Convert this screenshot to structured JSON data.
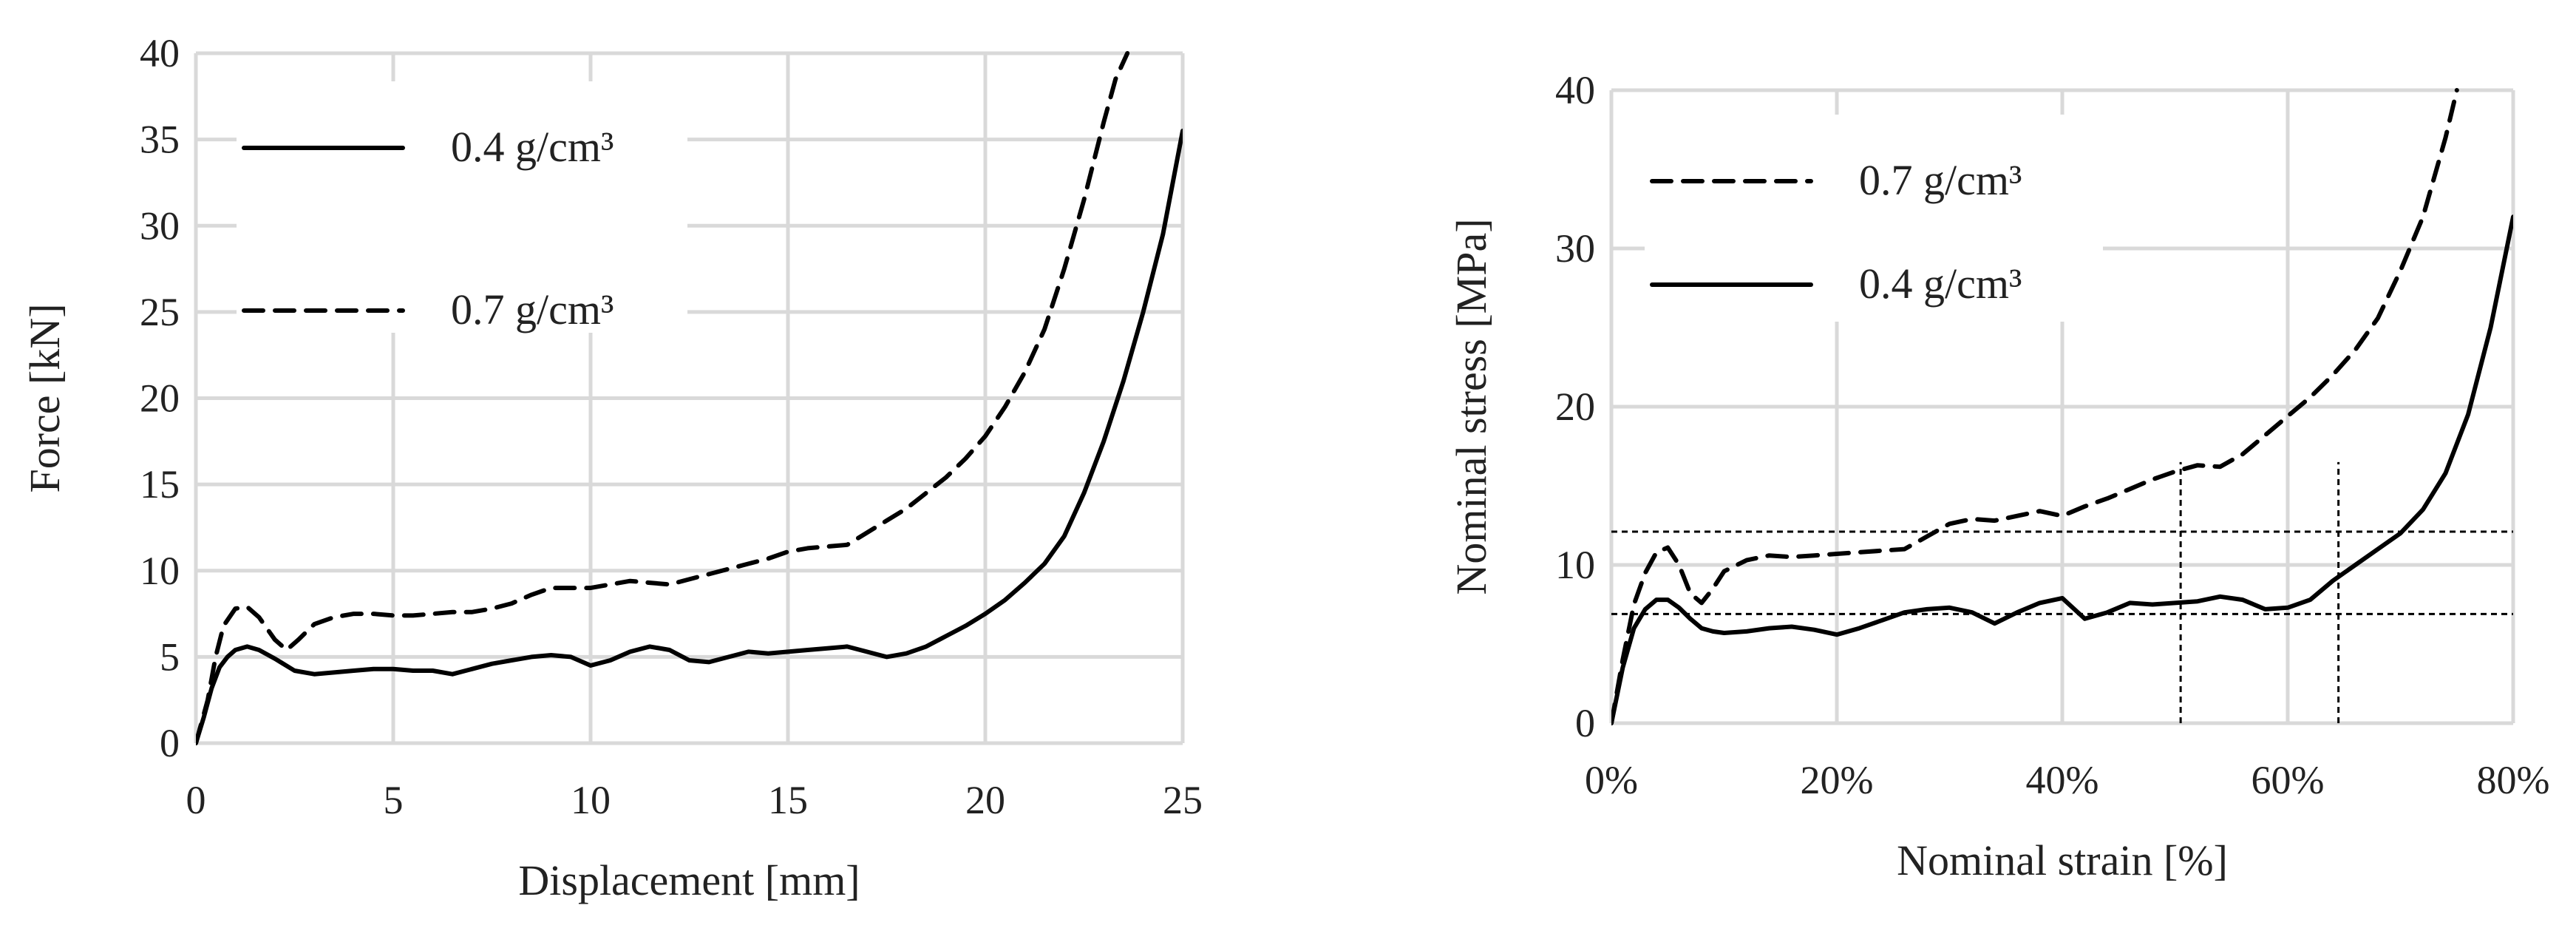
{
  "chart_data": [
    {
      "type": "line",
      "id": "left",
      "xlabel": "Displacement [mm]",
      "ylabel": "Force [kN]",
      "xlim": [
        0,
        25
      ],
      "ylim": [
        0,
        40
      ],
      "xticks": [
        0,
        5,
        10,
        15,
        20,
        25
      ],
      "yticks": [
        0,
        5,
        10,
        15,
        20,
        25,
        30,
        35,
        40
      ],
      "xtick_labels": [
        "0",
        "5",
        "10",
        "15",
        "20",
        "25"
      ],
      "ytick_labels": [
        "0",
        "5",
        "10",
        "15",
        "20",
        "25",
        "30",
        "35",
        "40"
      ],
      "grid": true,
      "legend_position": "top-left",
      "series": [
        {
          "name": "0.4 g/cm³",
          "style": "solid",
          "x": [
            0,
            0.2,
            0.4,
            0.6,
            0.8,
            1.0,
            1.3,
            1.6,
            2.0,
            2.5,
            3.0,
            3.5,
            4.0,
            4.5,
            5.0,
            5.5,
            6.0,
            6.5,
            7.0,
            7.5,
            8.0,
            8.5,
            9.0,
            9.5,
            10.0,
            10.5,
            11.0,
            11.5,
            12.0,
            12.5,
            13.0,
            13.5,
            14.0,
            14.5,
            15.0,
            15.5,
            16.0,
            16.5,
            17.0,
            17.5,
            18.0,
            18.5,
            19.0,
            19.5,
            20.0,
            20.5,
            21.0,
            21.5,
            22.0,
            22.5,
            23.0,
            23.5,
            24.0,
            24.5,
            25.0
          ],
          "y": [
            0,
            1.5,
            3.2,
            4.4,
            5.0,
            5.4,
            5.6,
            5.4,
            4.9,
            4.2,
            4.0,
            4.1,
            4.2,
            4.3,
            4.3,
            4.2,
            4.2,
            4.0,
            4.3,
            4.6,
            4.8,
            5.0,
            5.1,
            5.0,
            4.5,
            4.8,
            5.3,
            5.6,
            5.4,
            4.8,
            4.7,
            5.0,
            5.3,
            5.2,
            5.3,
            5.4,
            5.5,
            5.6,
            5.3,
            5.0,
            5.2,
            5.6,
            6.2,
            6.8,
            7.5,
            8.3,
            9.3,
            10.4,
            12.0,
            14.5,
            17.5,
            21.0,
            25.0,
            29.5,
            35.5
          ]
        },
        {
          "name": "0.7 g/cm³",
          "style": "dashed",
          "x": [
            0,
            0.3,
            0.5,
            0.7,
            1.0,
            1.3,
            1.6,
            2.0,
            2.3,
            2.6,
            3.0,
            3.5,
            4.0,
            4.5,
            5.0,
            5.5,
            6.0,
            6.5,
            7.0,
            7.5,
            8.0,
            8.5,
            9.0,
            9.5,
            10.0,
            10.5,
            11.0,
            11.5,
            12.0,
            12.5,
            13.0,
            13.5,
            14.0,
            14.5,
            15.0,
            15.5,
            16.0,
            16.5,
            17.0,
            17.5,
            18.0,
            18.5,
            19.0,
            19.5,
            20.0,
            20.5,
            21.0,
            21.5,
            22.0,
            22.5,
            23.0,
            23.3,
            23.6
          ],
          "y": [
            0,
            2.5,
            5.0,
            6.8,
            7.8,
            7.9,
            7.3,
            6.0,
            5.4,
            6.0,
            6.9,
            7.3,
            7.5,
            7.5,
            7.4,
            7.4,
            7.5,
            7.6,
            7.6,
            7.8,
            8.1,
            8.6,
            9.0,
            9.0,
            9.0,
            9.2,
            9.4,
            9.3,
            9.2,
            9.5,
            9.8,
            10.1,
            10.4,
            10.7,
            11.1,
            11.3,
            11.4,
            11.5,
            12.2,
            12.9,
            13.6,
            14.5,
            15.4,
            16.5,
            17.8,
            19.5,
            21.5,
            24.0,
            27.5,
            31.5,
            36.0,
            38.5,
            40.0
          ]
        }
      ]
    },
    {
      "type": "line",
      "id": "right",
      "xlabel": "Nominal strain [%]",
      "ylabel": "Nominal stress [MPa]",
      "xlim": [
        0,
        80
      ],
      "ylim": [
        0,
        40
      ],
      "xticks": [
        0,
        20,
        40,
        60,
        80
      ],
      "yticks": [
        0,
        10,
        20,
        30,
        40
      ],
      "xtick_labels": [
        "0%",
        "20%",
        "40%",
        "60%",
        "80%"
      ],
      "ytick_labels": [
        "0",
        "10",
        "20",
        "30",
        "40"
      ],
      "grid": true,
      "legend_position": "top-left",
      "reference_lines": {
        "horizontal": [
          12.1,
          6.9
        ],
        "vertical": [
          50.5,
          64.5
        ]
      },
      "series": [
        {
          "name": "0.7 g/cm³",
          "style": "dashed",
          "x": [
            0,
            1,
            2,
            3,
            4,
            5,
            6,
            7,
            8,
            9,
            10,
            12,
            14,
            16,
            18,
            20,
            22,
            24,
            26,
            28,
            30,
            32,
            34,
            36,
            38,
            40,
            42,
            44,
            46,
            48,
            50,
            52,
            54,
            56,
            58,
            60,
            62,
            64,
            66,
            68,
            70,
            72,
            74,
            75
          ],
          "y": [
            0,
            4.0,
            7.5,
            9.5,
            10.8,
            11.1,
            10.0,
            8.2,
            7.6,
            8.5,
            9.6,
            10.3,
            10.6,
            10.5,
            10.6,
            10.7,
            10.8,
            10.9,
            11.0,
            11.8,
            12.6,
            12.9,
            12.8,
            13.1,
            13.4,
            13.1,
            13.7,
            14.2,
            14.8,
            15.4,
            15.9,
            16.3,
            16.2,
            17.0,
            18.2,
            19.4,
            20.6,
            22.0,
            23.6,
            25.6,
            28.6,
            32.0,
            37.0,
            40.0
          ]
        },
        {
          "name": "0.4 g/cm³",
          "style": "solid",
          "x": [
            0,
            1,
            2,
            3,
            4,
            5,
            6,
            7,
            8,
            9,
            10,
            12,
            14,
            16,
            18,
            20,
            22,
            24,
            26,
            28,
            30,
            32,
            34,
            36,
            38,
            40,
            42,
            44,
            46,
            48,
            50,
            52,
            54,
            56,
            58,
            60,
            62,
            64,
            66,
            68,
            70,
            72,
            74,
            76,
            78,
            80
          ],
          "y": [
            0,
            3.5,
            6.0,
            7.2,
            7.8,
            7.8,
            7.3,
            6.6,
            6.0,
            5.8,
            5.7,
            5.8,
            6.0,
            6.1,
            5.9,
            5.6,
            6.0,
            6.5,
            7.0,
            7.2,
            7.3,
            7.0,
            6.3,
            7.0,
            7.6,
            7.9,
            6.6,
            7.0,
            7.6,
            7.5,
            7.6,
            7.7,
            8.0,
            7.8,
            7.2,
            7.3,
            7.8,
            9.0,
            10.0,
            11.0,
            12.0,
            13.5,
            15.8,
            19.5,
            25.0,
            32.0
          ]
        }
      ]
    }
  ]
}
